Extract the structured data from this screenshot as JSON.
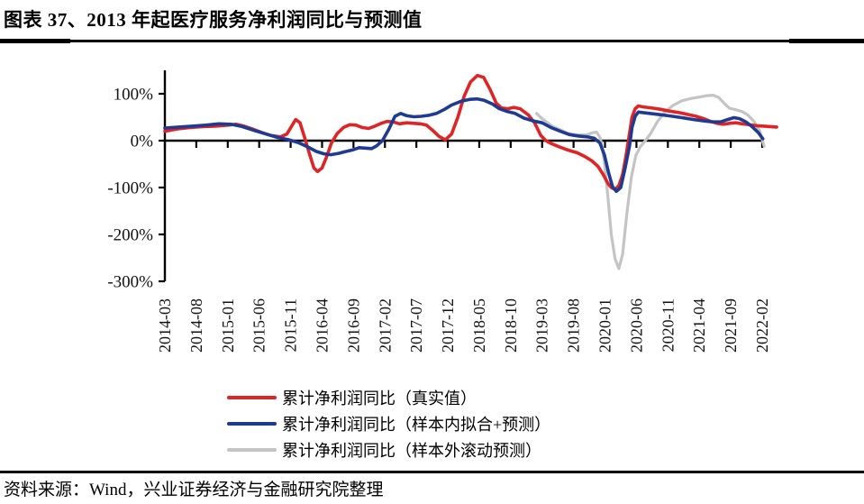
{
  "title": "图表 37、2013 年起医疗服务净利润同比与预测值",
  "source": "资料来源：Wind，兴业证券经济与金融研究院整理",
  "chart_data": {
    "type": "line",
    "title": "2013 年起医疗服务净利润同比与预测值",
    "xlabel": "",
    "ylabel": "",
    "y_tick_format": "percent",
    "y_ticks": [
      100,
      0,
      -100,
      -200,
      -300
    ],
    "ylim": [
      -320,
      150
    ],
    "grid": false,
    "legend_position": "bottom",
    "x_tick_labels": [
      "2014-03",
      "2014-08",
      "2015-01",
      "2015-06",
      "2015-11",
      "2016-04",
      "2016-09",
      "2017-02",
      "2017-07",
      "2017-12",
      "2018-05",
      "2018-10",
      "2019-03",
      "2019-08",
      "2020-01",
      "2020-06",
      "2020-11",
      "2021-04",
      "2021-09",
      "2022-02"
    ],
    "months_per_tick": 5,
    "x_unit": "month index from 2014-03",
    "series": [
      {
        "name": "累计净利润同比（真实值）",
        "color": "#e02424",
        "points": [
          [
            0,
            20
          ],
          [
            2,
            25
          ],
          [
            4,
            28
          ],
          [
            6,
            30
          ],
          [
            8,
            31
          ],
          [
            10,
            33
          ],
          [
            11.3,
            35
          ],
          [
            12.6,
            31
          ],
          [
            14.1,
            24
          ],
          [
            15.5,
            17
          ],
          [
            16.9,
            11
          ],
          [
            18.4,
            8
          ],
          [
            19.4,
            14
          ],
          [
            20.2,
            32
          ],
          [
            20.8,
            45
          ],
          [
            21.5,
            38
          ],
          [
            22.2,
            8
          ],
          [
            23,
            -28
          ],
          [
            23.7,
            -58
          ],
          [
            24.3,
            -66
          ],
          [
            25,
            -58
          ],
          [
            25.7,
            -35
          ],
          [
            26.5,
            -5
          ],
          [
            27.4,
            15
          ],
          [
            28.4,
            28
          ],
          [
            29.4,
            34
          ],
          [
            30.4,
            33
          ],
          [
            31.4,
            28
          ],
          [
            32.4,
            26
          ],
          [
            33.4,
            31
          ],
          [
            34.4,
            37
          ],
          [
            35.3,
            41
          ],
          [
            36.3,
            40
          ],
          [
            37.3,
            36
          ],
          [
            38.5,
            38
          ],
          [
            39.6,
            37
          ],
          [
            40.6,
            36
          ],
          [
            41.6,
            33
          ],
          [
            42.6,
            22
          ],
          [
            43.6,
            9
          ],
          [
            44.6,
            2
          ],
          [
            45.6,
            14
          ],
          [
            46.6,
            50
          ],
          [
            47.6,
            95
          ],
          [
            48.6,
            125
          ],
          [
            49.7,
            139
          ],
          [
            50.7,
            135
          ],
          [
            51.7,
            110
          ],
          [
            52.7,
            80
          ],
          [
            53.5,
            70
          ],
          [
            54.5,
            68
          ],
          [
            55.5,
            71
          ],
          [
            56.5,
            68
          ],
          [
            57.8,
            55
          ],
          [
            58.8,
            38
          ],
          [
            59.8,
            11
          ],
          [
            60.6,
            0
          ],
          [
            61.4,
            -6
          ],
          [
            62.7,
            -13
          ],
          [
            64.1,
            -20
          ],
          [
            65.6,
            -26
          ],
          [
            66.7,
            -33
          ],
          [
            67.9,
            -43
          ],
          [
            68.9,
            -55
          ],
          [
            69.7,
            -72
          ],
          [
            70.5,
            -92
          ],
          [
            71,
            -100
          ],
          [
            71.6,
            -104
          ],
          [
            72.2,
            -96
          ],
          [
            72.8,
            -72
          ],
          [
            73.3,
            -35
          ],
          [
            73.9,
            15
          ],
          [
            74.3,
            50
          ],
          [
            74.8,
            68
          ],
          [
            75.3,
            74
          ],
          [
            76.1,
            72
          ],
          [
            77.3,
            70
          ],
          [
            78.8,
            67
          ],
          [
            80.2,
            63
          ],
          [
            81.7,
            60
          ],
          [
            83.1,
            56
          ],
          [
            84.5,
            52
          ],
          [
            85.7,
            47
          ],
          [
            86.8,
            41
          ],
          [
            87.8,
            37
          ],
          [
            88.8,
            35
          ],
          [
            89.8,
            37
          ],
          [
            90.8,
            38
          ],
          [
            91.8,
            36
          ],
          [
            93,
            34
          ],
          [
            94.1,
            32
          ],
          [
            95.3,
            31
          ],
          [
            96.3,
            30
          ],
          [
            97.3,
            29
          ]
        ]
      },
      {
        "name": "累计净利润同比（样本内拟合+预测）",
        "color": "#1e3a93",
        "points": [
          [
            0,
            27
          ],
          [
            2.2,
            29
          ],
          [
            4.3,
            31
          ],
          [
            6.5,
            33
          ],
          [
            8.6,
            36
          ],
          [
            10.5,
            35
          ],
          [
            12.3,
            30
          ],
          [
            14.2,
            22
          ],
          [
            16.1,
            14
          ],
          [
            17.9,
            7
          ],
          [
            19.7,
            2
          ],
          [
            21.2,
            -4
          ],
          [
            22.7,
            -13
          ],
          [
            24.1,
            -23
          ],
          [
            25.3,
            -28
          ],
          [
            26.4,
            -30
          ],
          [
            27.7,
            -27
          ],
          [
            28.8,
            -23
          ],
          [
            29.8,
            -20
          ],
          [
            30.9,
            -15
          ],
          [
            31.9,
            -16
          ],
          [
            32.9,
            -17
          ],
          [
            33.7,
            -11
          ],
          [
            34.6,
            0
          ],
          [
            35.6,
            24
          ],
          [
            36.6,
            52
          ],
          [
            37.5,
            58
          ],
          [
            38.5,
            53
          ],
          [
            39.6,
            51
          ],
          [
            40.8,
            52
          ],
          [
            42,
            54
          ],
          [
            43.2,
            58
          ],
          [
            44.5,
            67
          ],
          [
            45.6,
            76
          ],
          [
            47.1,
            84
          ],
          [
            48.5,
            88
          ],
          [
            49.7,
            89
          ],
          [
            50.8,
            86
          ],
          [
            52.1,
            78
          ],
          [
            53.2,
            68
          ],
          [
            54.5,
            62
          ],
          [
            55.7,
            58
          ],
          [
            57.1,
            48
          ],
          [
            58.6,
            42
          ],
          [
            60,
            38
          ],
          [
            61.4,
            28
          ],
          [
            62.9,
            20
          ],
          [
            64.3,
            13
          ],
          [
            65.7,
            10
          ],
          [
            67.2,
            8
          ],
          [
            68.3,
            5
          ],
          [
            69.2,
            -5
          ],
          [
            69.9,
            -30
          ],
          [
            70.6,
            -70
          ],
          [
            71.2,
            -98
          ],
          [
            71.8,
            -108
          ],
          [
            72.5,
            -100
          ],
          [
            73.2,
            -58
          ],
          [
            73.9,
            -12
          ],
          [
            74.3,
            28
          ],
          [
            74.8,
            52
          ],
          [
            75.3,
            61
          ],
          [
            76.5,
            59
          ],
          [
            77.9,
            57
          ],
          [
            80.1,
            53
          ],
          [
            82.2,
            49
          ],
          [
            84.1,
            45
          ],
          [
            85.8,
            42
          ],
          [
            87.2,
            40
          ],
          [
            88.4,
            40
          ],
          [
            89.5,
            45
          ],
          [
            90.5,
            49
          ],
          [
            91.4,
            47
          ],
          [
            92.4,
            40
          ],
          [
            93.4,
            30
          ],
          [
            94.4,
            17
          ],
          [
            95.1,
            4
          ]
        ]
      },
      {
        "name": "累计净利润同比（样本外滚动预测）",
        "color": "#c4c4c4",
        "points": [
          [
            59.1,
            58
          ],
          [
            60,
            47
          ],
          [
            60.7,
            40
          ],
          [
            61.7,
            30
          ],
          [
            62.9,
            23
          ],
          [
            64,
            16
          ],
          [
            65.1,
            13
          ],
          [
            66.3,
            12
          ],
          [
            67.2,
            13
          ],
          [
            68,
            17
          ],
          [
            68.7,
            18
          ],
          [
            69.3,
            4
          ],
          [
            69.9,
            -45
          ],
          [
            70.5,
            -125
          ],
          [
            71,
            -200
          ],
          [
            71.6,
            -252
          ],
          [
            72.2,
            -273
          ],
          [
            72.8,
            -242
          ],
          [
            73.5,
            -152
          ],
          [
            74.2,
            -78
          ],
          [
            74.9,
            -32
          ],
          [
            75.6,
            -13
          ],
          [
            76.3,
            -2
          ],
          [
            77.2,
            14
          ],
          [
            78.3,
            40
          ],
          [
            79.5,
            61
          ],
          [
            80.8,
            75
          ],
          [
            82.2,
            85
          ],
          [
            83.7,
            90
          ],
          [
            85.1,
            93
          ],
          [
            86.2,
            96
          ],
          [
            87.2,
            97
          ],
          [
            88.1,
            92
          ],
          [
            89,
            79
          ],
          [
            89.8,
            69
          ],
          [
            90.8,
            66
          ],
          [
            91.8,
            62
          ],
          [
            92.7,
            55
          ],
          [
            93.7,
            41
          ],
          [
            94.6,
            21
          ],
          [
            95.3,
            -12
          ]
        ]
      }
    ]
  }
}
